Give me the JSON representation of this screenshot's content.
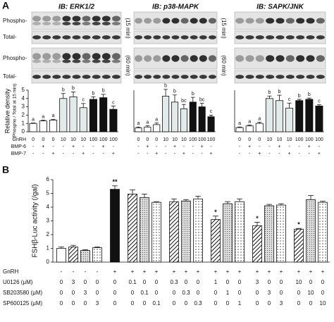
{
  "panel_labels": [
    "A",
    "B"
  ],
  "blots": {
    "row_labels": [
      "Phospho-",
      "Total-",
      "Phospho-",
      "Total-"
    ],
    "columns": [
      {
        "title": "IB: ERK1/2",
        "time_labels": [
          "(15 min)",
          "(60 min)"
        ]
      },
      {
        "title": "IB: p38-MAPK",
        "time_labels": [
          "(15 min)",
          "(60 min)"
        ]
      },
      {
        "title": "IB: SAPK/JNK"
      }
    ]
  },
  "chart_data": [
    {
      "type": "bar",
      "y_label": "Relative density",
      "y_sublabel": "(Phospho / Total at 15 min)",
      "values": [
        1,
        1.3,
        1.4,
        4.0,
        4.2,
        2.9,
        3.9,
        4.1,
        2.7
      ],
      "errors": [
        0.05,
        0.1,
        0.1,
        0.6,
        0.6,
        0.5,
        0.3,
        0.4,
        0.4
      ],
      "labels": [
        "a",
        "a",
        "a",
        "b",
        "b",
        "c",
        "b",
        "b",
        "c"
      ],
      "colors": [
        "#ffffff",
        "#ffffff",
        "#ffffff",
        "#e3eaea",
        "#e3eaea",
        "#e3eaea",
        "#111111",
        "#111111",
        "#111111"
      ],
      "ylim": [
        0,
        5
      ],
      "yticks": [
        0,
        1,
        2,
        3,
        4,
        5
      ],
      "conditions": [
        {
          "label": "GnRH",
          "values": [
            0,
            0,
            0,
            10,
            10,
            10,
            100,
            100,
            100
          ]
        },
        {
          "label": "BMP-6",
          "values": [
            "-",
            "+",
            "-",
            "-",
            "+",
            "-",
            "-",
            "+",
            "-"
          ]
        },
        {
          "label": "BMP-7",
          "values": [
            "-",
            "-",
            "+",
            "-",
            "-",
            "+",
            "-",
            "-",
            "+"
          ]
        }
      ]
    },
    {
      "type": "bar",
      "values": [
        1,
        1.2,
        1.8,
        9.0,
        7.5,
        5.8,
        7.5,
        6.3,
        3.8
      ],
      "errors": [
        0.2,
        0.3,
        0.4,
        1.7,
        1.8,
        1.1,
        1.2,
        0.9,
        0.4
      ],
      "labels": [
        "a",
        "a",
        "a",
        "b",
        "b",
        "bc",
        "b",
        "bc",
        "c"
      ],
      "colors": [
        "#ffffff",
        "#ffffff",
        "#ffffff",
        "#e3eaea",
        "#e3eaea",
        "#e3eaea",
        "#111111",
        "#111111",
        "#111111"
      ],
      "ylim": [
        0,
        10.5
      ],
      "conditions": [
        {
          "values": [
            0,
            0,
            0,
            10,
            10,
            10,
            100,
            100,
            100
          ]
        },
        {
          "values": [
            "-",
            "+",
            "-",
            "-",
            "+",
            "-",
            "-",
            "+",
            "-"
          ]
        },
        {
          "values": [
            "-",
            "-",
            "+",
            "-",
            "-",
            "+",
            "-",
            "-",
            "+"
          ]
        }
      ]
    },
    {
      "type": "bar",
      "values": [
        1,
        1.4,
        2.0,
        8.0,
        7.5,
        5.7,
        7.5,
        7.8,
        6.2
      ],
      "errors": [
        0.15,
        0.2,
        0.3,
        0.6,
        1.3,
        1.2,
        0.3,
        0.3,
        0.3
      ],
      "labels": [
        "a",
        "a",
        "a",
        "b",
        "b",
        "c",
        "b",
        "b",
        "c"
      ],
      "colors": [
        "#ffffff",
        "#ffffff",
        "#ffffff",
        "#e3eaea",
        "#e3eaea",
        "#e3eaea",
        "#111111",
        "#111111",
        "#111111"
      ],
      "ylim": [
        0,
        10
      ],
      "conditions": [
        {
          "values": [
            0,
            0,
            0,
            10,
            10,
            10,
            100,
            100,
            100
          ]
        },
        {
          "values": [
            "-",
            "+",
            "-",
            "-",
            "+",
            "-",
            "-",
            "+",
            "-"
          ]
        },
        {
          "values": [
            "-",
            "-",
            "+",
            "-",
            "-",
            "+",
            "-",
            "-",
            "+"
          ]
        }
      ]
    },
    {
      "type": "bar",
      "y_label": "FSHβ-Luc activity (/gal)",
      "values": [
        1.0,
        1.1,
        0.85,
        1.05,
        5.3,
        4.95,
        4.7,
        4.35,
        4.4,
        4.45,
        4.6,
        3.1,
        4.25,
        4.4,
        2.65,
        4.1,
        4.15,
        2.4,
        4.55,
        4.35
      ],
      "errors": [
        0.1,
        0.12,
        0.05,
        0.05,
        0.25,
        0.3,
        0.25,
        0.05,
        0.2,
        0.1,
        0.2,
        0.25,
        0.15,
        0.2,
        0.25,
        0.1,
        0.1,
        0.05,
        0.3,
        0.08
      ],
      "labels": [
        null,
        null,
        null,
        null,
        "**",
        null,
        null,
        null,
        null,
        null,
        null,
        "*",
        null,
        null,
        "*",
        null,
        null,
        "*",
        null,
        null
      ],
      "colors": [
        "#ffffff",
        "#ffffff",
        "#ffffff",
        "#ffffff",
        "#111111",
        "#ffffff",
        "#ffffff",
        "#ffffff",
        "#ffffff",
        "#ffffff",
        "#ffffff",
        "#ffffff",
        "#ffffff",
        "#ffffff",
        "#ffffff",
        "#ffffff",
        "#ffffff",
        "#ffffff",
        "#ffffff",
        "#ffffff"
      ],
      "ylim": [
        0,
        6
      ],
      "yticks": [
        0,
        1,
        2,
        3,
        4,
        5,
        6
      ],
      "conditions": [
        {
          "label": "GnRH",
          "values": [
            "-",
            "-",
            "-",
            "-",
            "+",
            "+",
            "+",
            "+",
            "+",
            "+",
            "+",
            "+",
            "+",
            "+",
            "+",
            "+",
            "+",
            "+",
            "+",
            "+"
          ]
        },
        {
          "label": "U0126 (μM)",
          "values": [
            0,
            3,
            0,
            0,
            0,
            0.1,
            0,
            0,
            0.3,
            0,
            0,
            1,
            0,
            0,
            3,
            0,
            0,
            10,
            0,
            0
          ]
        },
        {
          "label": "SB203580 (μM)",
          "values": [
            0,
            0,
            3,
            0,
            0,
            0,
            0.1,
            0,
            0,
            0.3,
            0,
            0,
            1,
            0,
            0,
            3,
            0,
            0,
            10,
            0
          ]
        },
        {
          "label": "SP600125 (μM)",
          "values": [
            0,
            0,
            0,
            3,
            0,
            0,
            0,
            0.1,
            0,
            0,
            0.3,
            0,
            0,
            1,
            0,
            0,
            3,
            0,
            0,
            10
          ]
        }
      ]
    }
  ]
}
